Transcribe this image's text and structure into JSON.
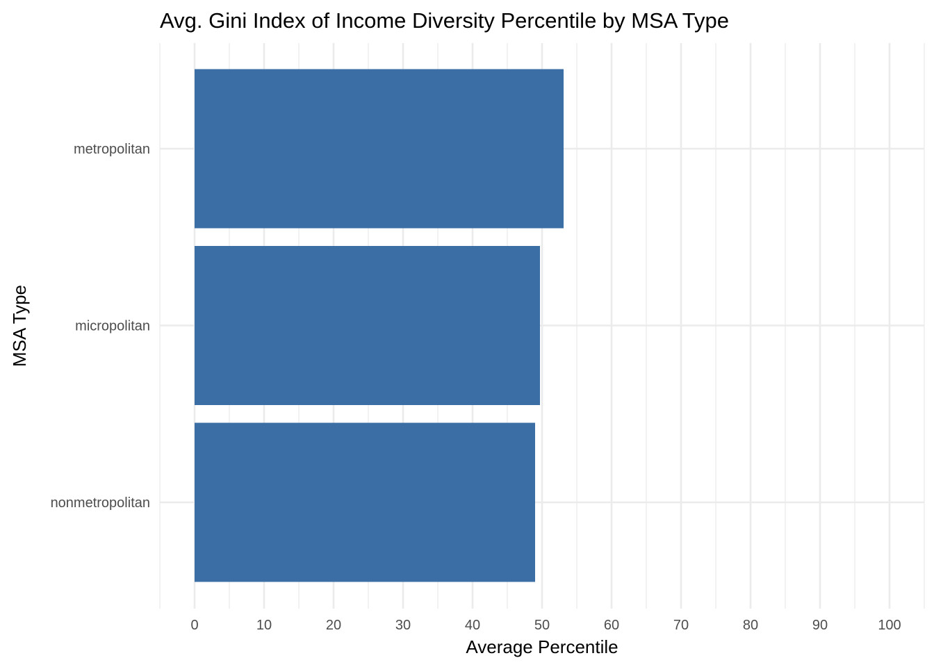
{
  "chart_data": {
    "type": "bar",
    "orientation": "horizontal",
    "title": "Avg. Gini Index of Income Diversity Percentile by MSA Type",
    "xlabel": "Average Percentile",
    "ylabel": "MSA Type",
    "categories": [
      "metropolitan",
      "micropolitan",
      "nonmetropolitan"
    ],
    "values": [
      53.1,
      49.7,
      49.0
    ],
    "xlim": [
      0,
      100
    ],
    "x_ticks": [
      0,
      10,
      20,
      30,
      40,
      50,
      60,
      70,
      80,
      90,
      100
    ],
    "x_tick_labels": [
      "0",
      "10",
      "20",
      "30",
      "40",
      "50",
      "60",
      "70",
      "80",
      "90",
      "100"
    ],
    "bar_color": "#3a6ea5",
    "grid": true,
    "legend": "none"
  }
}
